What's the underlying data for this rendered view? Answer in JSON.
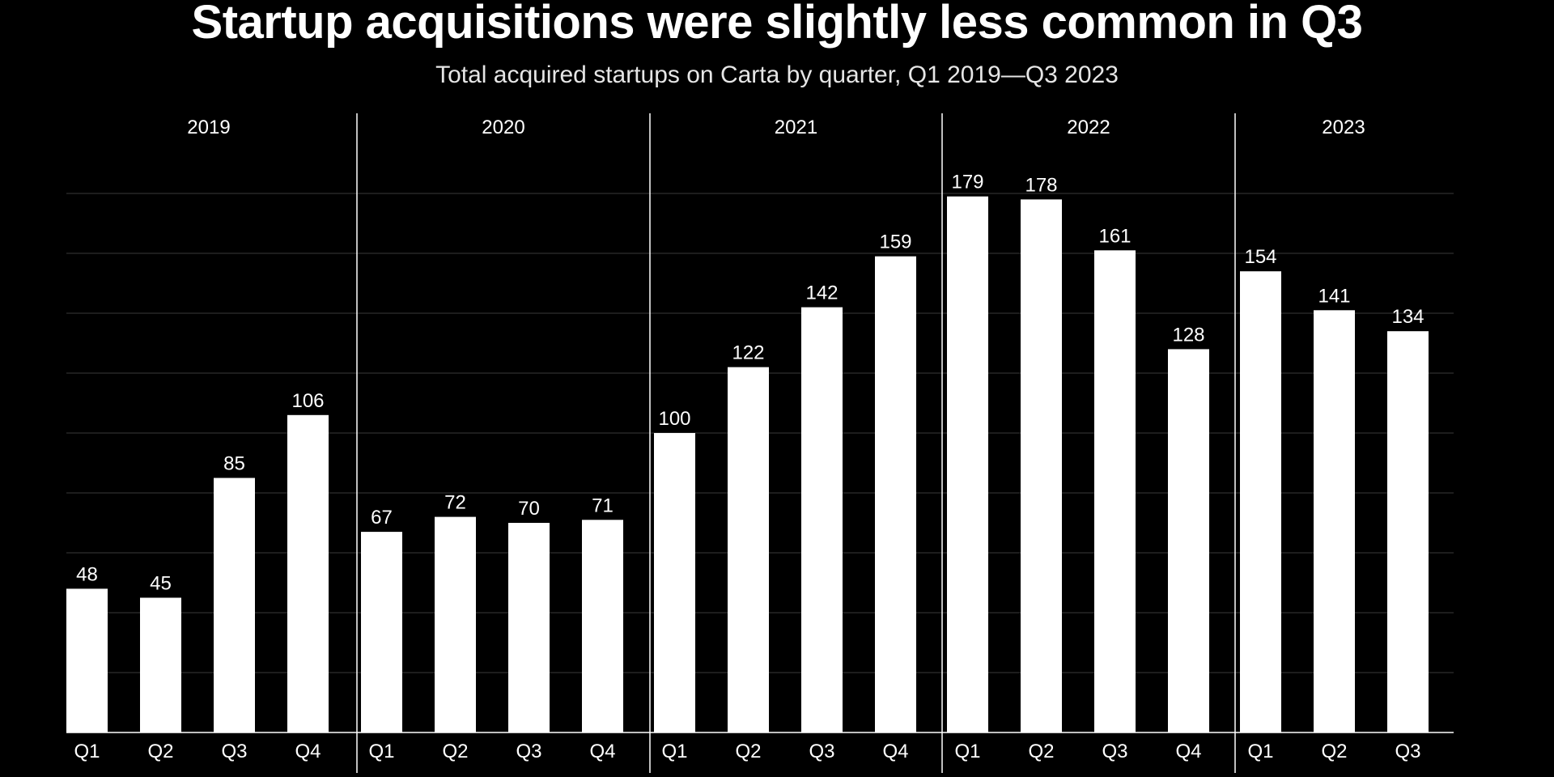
{
  "header": {
    "title": "Startup acquisitions were slightly less common in Q3",
    "subtitle": "Total acquired startups on Carta by quarter, Q1 2019—Q3 2023"
  },
  "colors": {
    "background": "#000000",
    "bar": "#ffffff",
    "text": "#ffffff",
    "grid": "#3a3a3a"
  },
  "chart_data": {
    "type": "bar",
    "title": "Startup acquisitions were slightly less common in Q3",
    "subtitle": "Total acquired startups on Carta by quarter, Q1 2019—Q3 2023",
    "xlabel": "",
    "ylabel": "",
    "ylim": [
      0,
      180
    ],
    "grid": true,
    "legend": "none",
    "data_labels": true,
    "groups": [
      {
        "year": "2019",
        "categories": [
          "Q1",
          "Q2",
          "Q3",
          "Q4"
        ],
        "values": [
          48,
          45,
          85,
          106
        ]
      },
      {
        "year": "2020",
        "categories": [
          "Q1",
          "Q2",
          "Q3",
          "Q4"
        ],
        "values": [
          67,
          72,
          70,
          71
        ]
      },
      {
        "year": "2021",
        "categories": [
          "Q1",
          "Q2",
          "Q3",
          "Q4"
        ],
        "values": [
          100,
          122,
          142,
          159
        ]
      },
      {
        "year": "2022",
        "categories": [
          "Q1",
          "Q2",
          "Q3",
          "Q4"
        ],
        "values": [
          179,
          178,
          161,
          128
        ]
      },
      {
        "year": "2023",
        "categories": [
          "Q1",
          "Q2",
          "Q3"
        ],
        "values": [
          154,
          141,
          134
        ]
      }
    ]
  }
}
